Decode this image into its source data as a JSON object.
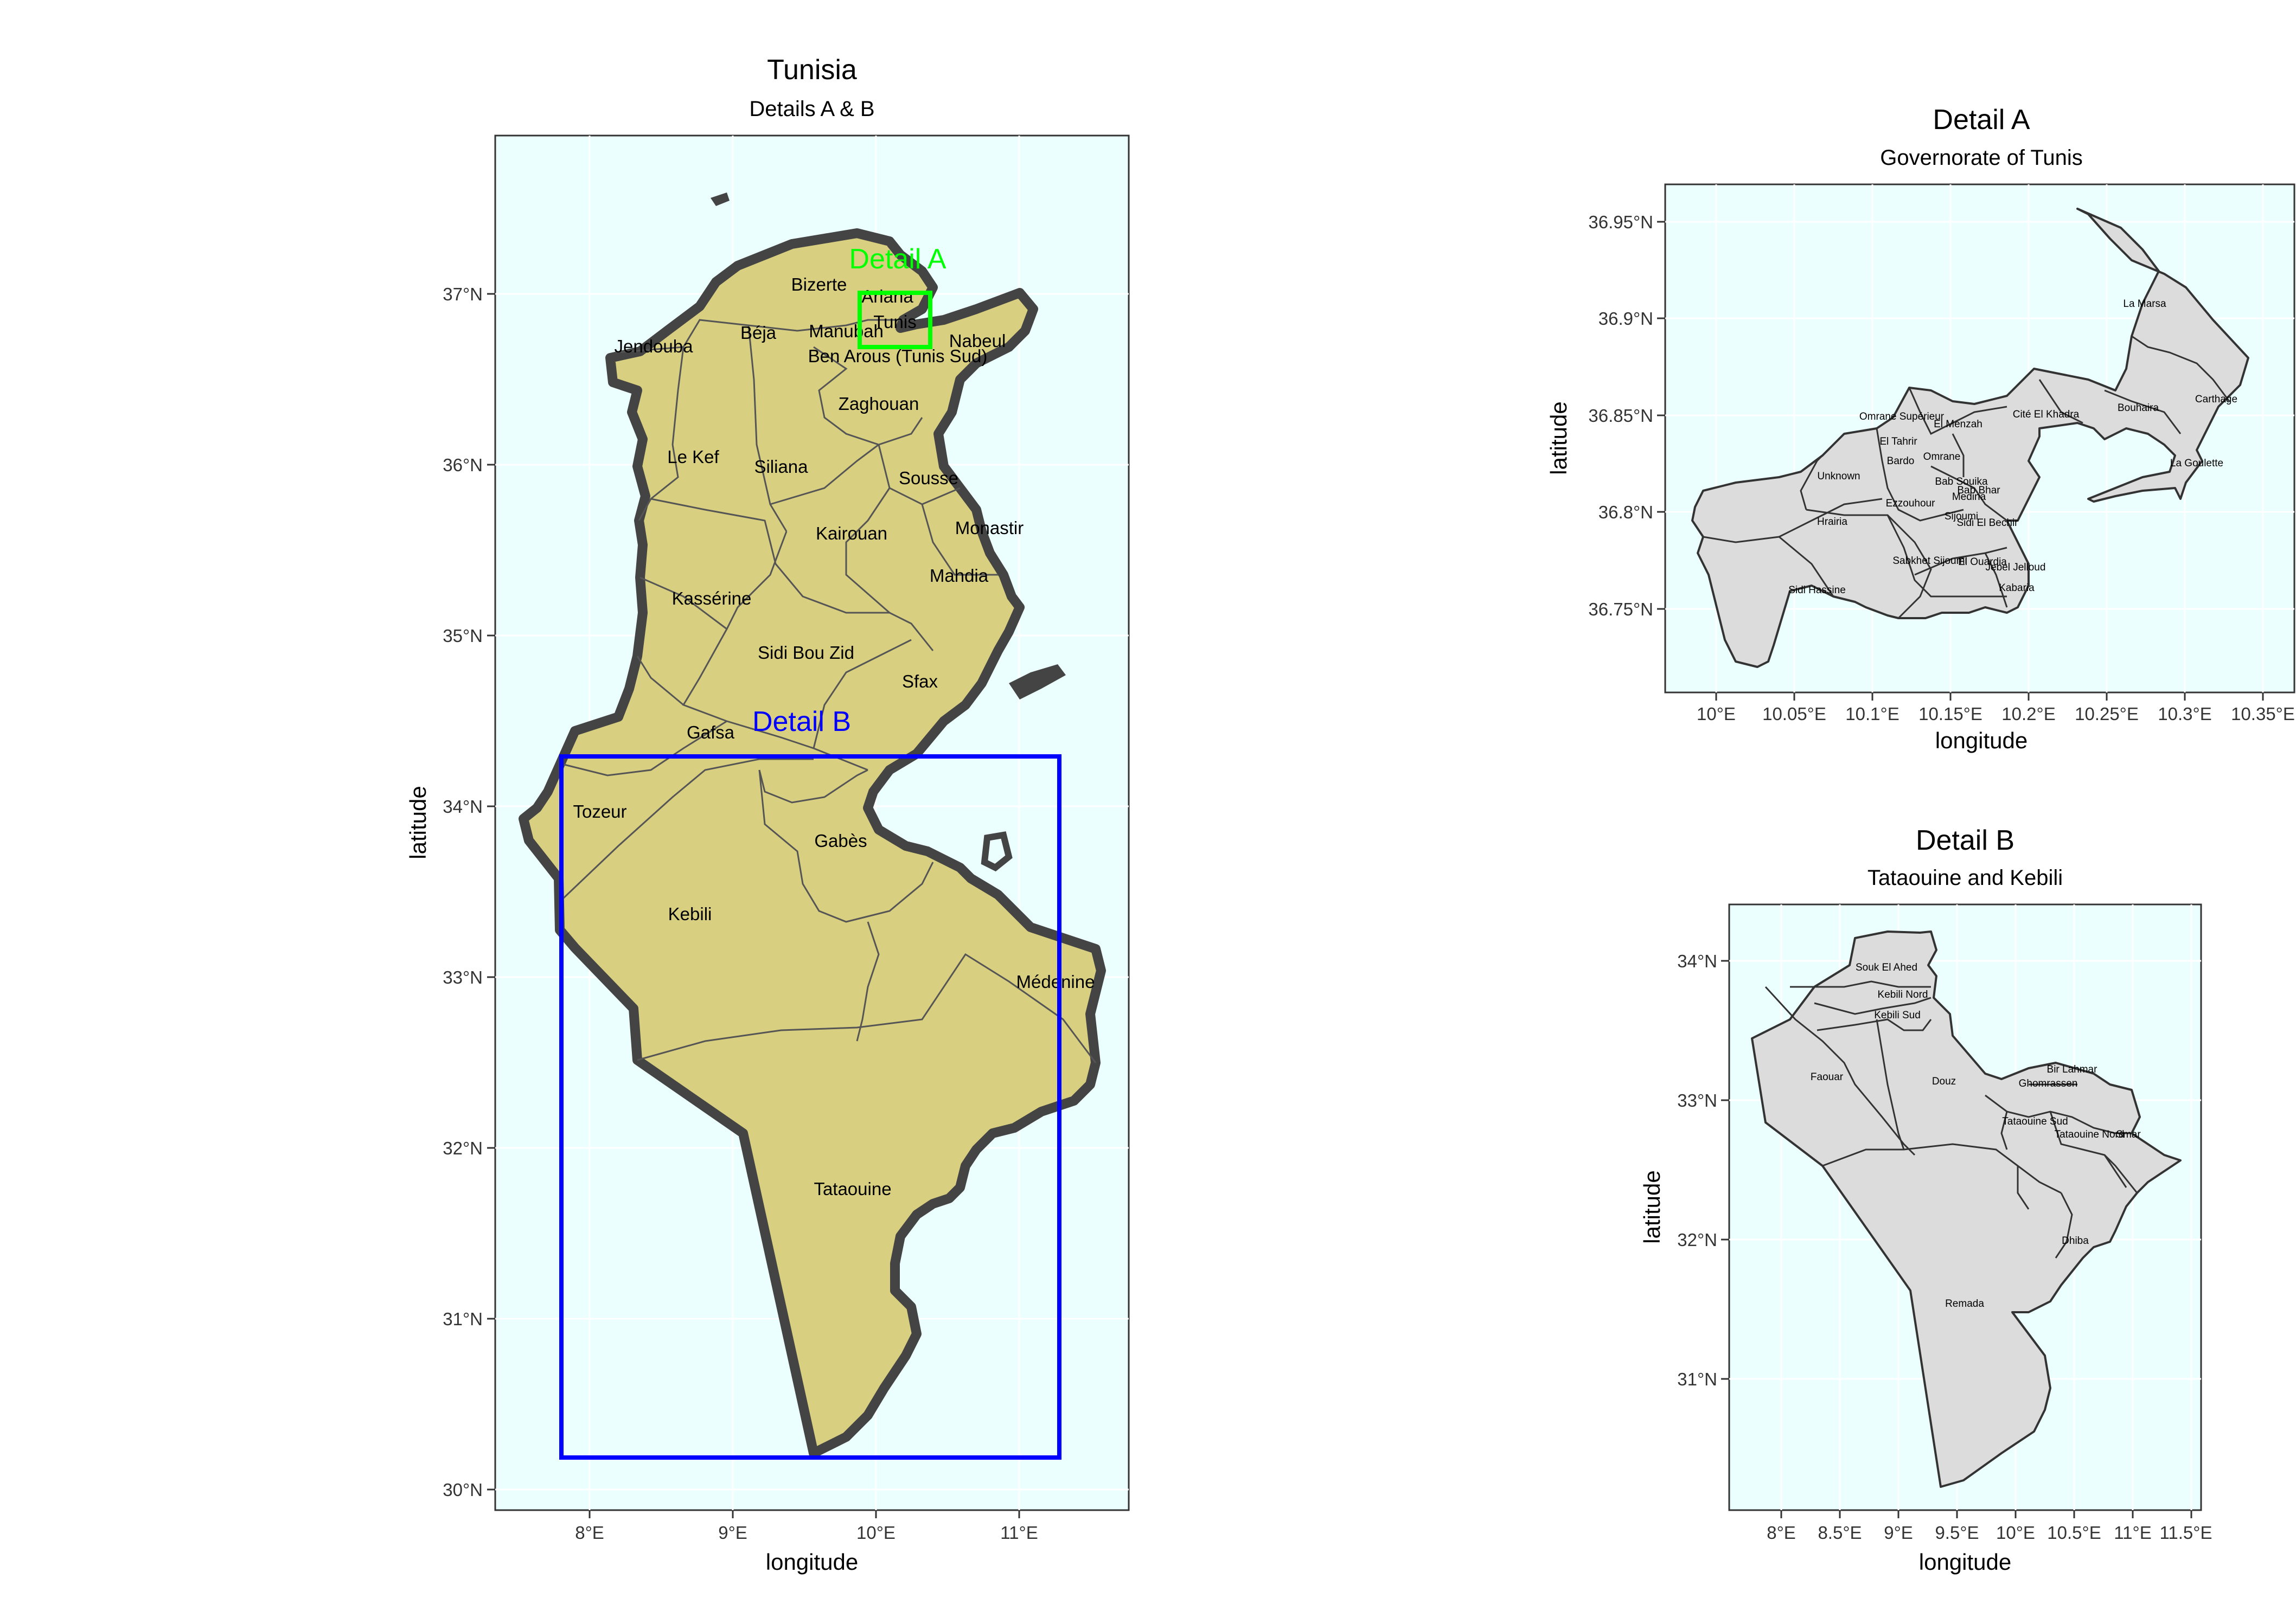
{
  "main_map": {
    "title": "Tunisia",
    "subtitle": "Details A & B",
    "xlabel": "longitude",
    "ylabel": "latitude",
    "x_ticks": [
      "8°E",
      "9°E",
      "10°E",
      "11°E"
    ],
    "y_ticks": [
      "30°N",
      "31°N",
      "32°N",
      "33°N",
      "34°N",
      "35°N",
      "36°N",
      "37°N"
    ],
    "governorates": [
      "Bizerte",
      "Ariana",
      "Tunis",
      "Béja",
      "Manubah",
      "Nabeul",
      "Jendouba",
      "Ben Arous (Tunis Sud)",
      "Zaghouan",
      "Le Kef",
      "Siliana",
      "Sousse",
      "Monastir",
      "Kairouan",
      "Mahdia",
      "Kassérine",
      "Sidi Bou Zid",
      "Sfax",
      "Gafsa",
      "Tozeur",
      "Gabès",
      "Kebili",
      "Médenine",
      "Tataouine"
    ],
    "detail_a_label": "Detail A",
    "detail_b_label": "Detail B",
    "detail_a_color": "#00ff00",
    "detail_b_color": "#0000ff",
    "land_color": "#d8cf80",
    "sea_color": "#ecffff"
  },
  "detail_a": {
    "title": "Detail A",
    "subtitle": "Governorate of Tunis",
    "xlabel": "longitude",
    "ylabel": "latitude",
    "x_ticks": [
      "10°E",
      "10.05°E",
      "10.1°E",
      "10.15°E",
      "10.2°E",
      "10.25°E",
      "10.3°E",
      "10.35°E"
    ],
    "y_ticks": [
      "36.75°N",
      "36.8°N",
      "36.85°N",
      "36.9°N",
      "36.95°N"
    ],
    "delegations": [
      "La Marsa",
      "Carthage",
      "Bouhaira",
      "La Goulette",
      "Cité El Khadra",
      "Omrane Supérieur",
      "El Menzah",
      "El Tahrir",
      "Omrane",
      "Bardo",
      "Unknown",
      "Bab Souika",
      "Bab Bhar",
      "Medina",
      "Ezzouhour",
      "Sijoumi",
      "Sidi El Bechir",
      "Hrairia",
      "Sabkhet Sijoumi",
      "El Ouardia",
      "Jebel Jelloud",
      "Kabaria",
      "Sidi Hassine"
    ],
    "fill_color": "#dcdcdc"
  },
  "detail_b": {
    "title": "Detail B",
    "subtitle": "Tataouine and Kebili",
    "xlabel": "longitude",
    "ylabel": "latitude",
    "x_ticks": [
      "8°E",
      "8.5°E",
      "9°E",
      "9.5°E",
      "10°E",
      "10.5°E",
      "11°E",
      "11.5°E"
    ],
    "y_ticks": [
      "31°N",
      "32°N",
      "33°N",
      "34°N"
    ],
    "delegations": [
      "Souk El Ahed",
      "Kebili Nord",
      "Kebili Sud",
      "Faouar",
      "Douz",
      "Bir Lahmar",
      "Ghomrassen",
      "Tataouine Sud",
      "Tataouine Nord",
      "Smar",
      "Dhiba",
      "Remada"
    ],
    "fill_color": "#dcdcdc"
  }
}
